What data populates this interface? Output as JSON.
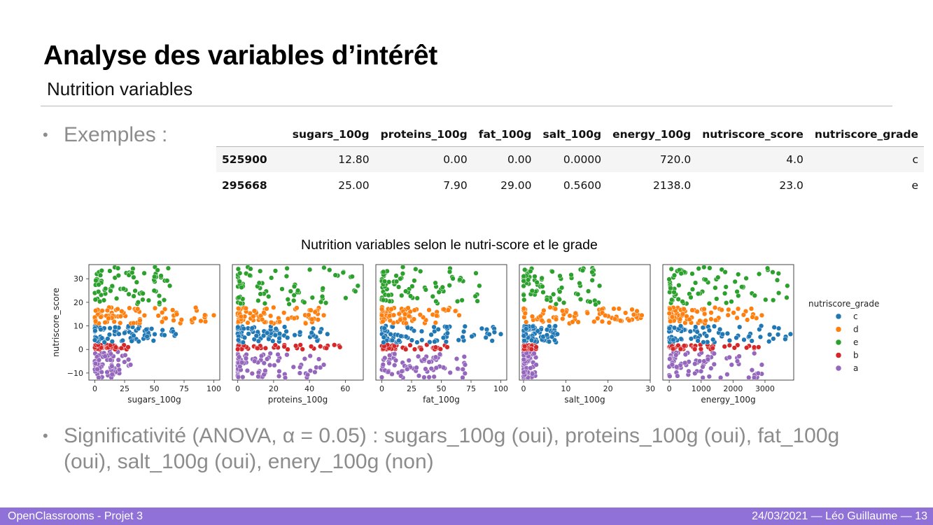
{
  "slide": {
    "title": "Analyse des variables d’intérêt",
    "subtitle": "Nutrition variables",
    "bullet_examples": "Exemples :",
    "bullet_significance": "Significativité (ANOVA, α = 0.05) : sugars_100g (oui), proteins_100g (oui), fat_100g (oui), salt_100g (oui), enery_100g (non)"
  },
  "table": {
    "columns": [
      "",
      "sugars_100g",
      "proteins_100g",
      "fat_100g",
      "salt_100g",
      "energy_100g",
      "nutriscore_score",
      "nutriscore_grade"
    ],
    "rows": [
      [
        "525900",
        "12.80",
        "0.00",
        "0.00",
        "0.0000",
        "720.0",
        "4.0",
        "c"
      ],
      [
        "295668",
        "25.00",
        "7.90",
        "29.00",
        "0.5600",
        "2138.0",
        "23.0",
        "e"
      ]
    ]
  },
  "figure_title": "Nutrition variables selon le nutri-score et le grade",
  "chart_data": {
    "type": "scatter",
    "title": "Nutrition variables selon le nutri-score et le grade",
    "ylabel": "nutriscore_score",
    "ylim": [
      -13,
      36
    ],
    "yticks": [
      -10,
      0,
      10,
      20,
      30
    ],
    "ytick_labels": [
      "−10",
      "0",
      "10",
      "20",
      "30"
    ],
    "legend": {
      "title": "nutriscore_grade",
      "placement": "right",
      "entries": [
        {
          "label": "c",
          "color": "#1f77b4"
        },
        {
          "label": "d",
          "color": "#ff7f0e"
        },
        {
          "label": "e",
          "color": "#2ca02c"
        },
        {
          "label": "b",
          "color": "#d62728"
        },
        {
          "label": "a",
          "color": "#9467bd"
        }
      ]
    },
    "grade_score_ranges": {
      "a": [
        -12,
        -1
      ],
      "b": [
        0,
        2
      ],
      "c": [
        3,
        10
      ],
      "d": [
        11,
        18
      ],
      "e": [
        19,
        35
      ]
    },
    "panels": [
      {
        "xlabel": "sugars_100g",
        "xlim": [
          -5,
          105
        ],
        "xticks": [
          0,
          25,
          50,
          75,
          100
        ],
        "xtick_labels": [
          "0",
          "25",
          "50",
          "75",
          "100"
        ],
        "xmax": {
          "a": 30,
          "b": 28,
          "c": 68,
          "d": 100,
          "e": 63
        }
      },
      {
        "xlabel": "proteins_100g",
        "xlim": [
          -3,
          70
        ],
        "xticks": [
          0,
          20,
          40,
          60
        ],
        "xtick_labels": [
          "0",
          "20",
          "40",
          "60"
        ],
        "xmax": {
          "a": 48,
          "b": 57,
          "c": 50,
          "d": 48,
          "e": 67
        }
      },
      {
        "xlabel": "fat_100g",
        "xlim": [
          -5,
          105
        ],
        "xticks": [
          0,
          25,
          50,
          75,
          100
        ],
        "xtick_labels": [
          "0",
          "25",
          "50",
          "75",
          "100"
        ],
        "xmax": {
          "a": 70,
          "b": 55,
          "c": 100,
          "d": 65,
          "e": 82
        }
      },
      {
        "xlabel": "salt_100g",
        "xlim": [
          -1,
          30
        ],
        "xticks": [
          0,
          10,
          20,
          30
        ],
        "xtick_labels": [
          "0",
          "10",
          "20",
          "30"
        ],
        "xmax": {
          "a": 3,
          "b": 3,
          "c": 8,
          "d": 28,
          "e": 18
        }
      },
      {
        "xlabel": "energy_100g",
        "xlim": [
          -200,
          3900
        ],
        "xticks": [
          0,
          1000,
          2000,
          3000
        ],
        "xtick_labels": [
          "0",
          "1000",
          "2000",
          "3000"
        ],
        "xmax": {
          "a": 2900,
          "b": 2800,
          "c": 3800,
          "d": 2900,
          "e": 3700
        }
      }
    ]
  },
  "footer": {
    "left": "OpenClassrooms - Projet 3",
    "right": "24/03/2021  — Léo Guillaume —  13"
  }
}
